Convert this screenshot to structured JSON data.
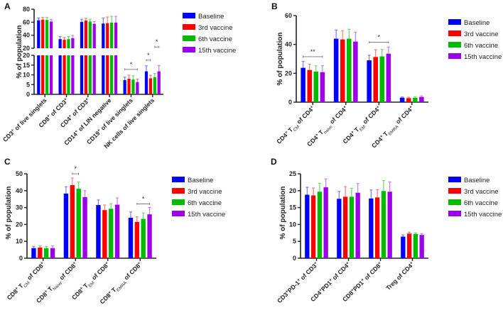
{
  "chart_data": [
    {
      "panel": "A",
      "type": "bar",
      "ylabel": "% of population",
      "y_axis_break": {
        "lower": [
          0,
          20
        ],
        "upper": [
          20,
          80
        ]
      },
      "yticks_lower": [
        0,
        5,
        10,
        15,
        20
      ],
      "yticks_upper": [
        20,
        40,
        60,
        80
      ],
      "categories": [
        {
          "parts": [
            {
              "t": "CD3",
              "s": ""
            },
            {
              "t": "+",
              "s": "sup"
            },
            {
              "t": " of live singlets",
              "s": ""
            }
          ]
        },
        {
          "parts": [
            {
              "t": "CD8",
              "s": ""
            },
            {
              "t": "+",
              "s": "sup"
            },
            {
              "t": " of CD3",
              "s": ""
            },
            {
              "t": "+",
              "s": "sup"
            }
          ]
        },
        {
          "parts": [
            {
              "t": "CD4",
              "s": ""
            },
            {
              "t": "+",
              "s": "sup"
            },
            {
              "t": " of CD3",
              "s": ""
            },
            {
              "t": "+",
              "s": "sup"
            }
          ]
        },
        {
          "parts": [
            {
              "t": "CD14",
              "s": ""
            },
            {
              "t": "+",
              "s": "sup"
            },
            {
              "t": " of LIN negative",
              "s": ""
            }
          ]
        },
        {
          "parts": [
            {
              "t": "CD19",
              "s": ""
            },
            {
              "t": "+",
              "s": "sup"
            },
            {
              "t": " of live singlets",
              "s": ""
            }
          ]
        },
        {
          "parts": [
            {
              "t": "NK cells of live singlets",
              "s": ""
            }
          ]
        }
      ],
      "series": [
        {
          "name": "Baseline",
          "color": "#0000ff",
          "err_color": "#7a7aff",
          "values": [
            63,
            34,
            60.5,
            58,
            7.3,
            11.8
          ],
          "errors": [
            3.5,
            4,
            4,
            8.5,
            1.5,
            2.8
          ]
        },
        {
          "name": "3rd vaccine",
          "color": "#ff0000",
          "err_color": "#ff7a7a",
          "values": [
            64,
            33,
            62.5,
            58.5,
            8,
            8.2
          ],
          "errors": [
            3.5,
            3.5,
            3.5,
            9.5,
            1.8,
            1.6
          ]
        },
        {
          "name": "6th vaccine",
          "color": "#00bb00",
          "err_color": "#6ad96a",
          "values": [
            63.5,
            34,
            61,
            59.5,
            7.6,
            8.8
          ],
          "errors": [
            4,
            4,
            3.5,
            9.5,
            1.9,
            1.9
          ]
        },
        {
          "name": "15th vaccine",
          "color": "#9b00e8",
          "err_color": "#c77af5",
          "values": [
            61,
            35.5,
            57.5,
            59.5,
            6.3,
            11.8
          ],
          "errors": [
            3,
            4,
            3.5,
            9.5,
            1.5,
            3
          ]
        }
      ],
      "significance": [
        {
          "category": 4,
          "from": 0,
          "to": 3,
          "y": 12.8,
          "label": "*"
        },
        {
          "category": 5,
          "from": 0,
          "to": 1,
          "y": 17.5,
          "label": "*"
        },
        {
          "category": 5,
          "from": 2,
          "to": 3,
          "y": 22,
          "label": "*"
        }
      ],
      "legend": "right"
    },
    {
      "panel": "B",
      "type": "bar",
      "ylabel": "% of population",
      "ylim": [
        0,
        60
      ],
      "yticks": [
        0,
        20,
        40,
        60
      ],
      "categories": [
        {
          "parts": [
            {
              "t": "CD4",
              "s": ""
            },
            {
              "t": "+",
              "s": "sup"
            },
            {
              "t": " T",
              "s": ""
            },
            {
              "t": "CM",
              "s": "sub"
            },
            {
              "t": " of CD4",
              "s": ""
            },
            {
              "t": "+",
              "s": "sup"
            }
          ]
        },
        {
          "parts": [
            {
              "t": "CD4",
              "s": ""
            },
            {
              "t": "+",
              "s": "sup"
            },
            {
              "t": " T",
              "s": ""
            },
            {
              "t": "naive",
              "s": "sub"
            },
            {
              "t": " of CD4",
              "s": ""
            },
            {
              "t": "+",
              "s": "sup"
            }
          ]
        },
        {
          "parts": [
            {
              "t": "CD4",
              "s": ""
            },
            {
              "t": "+",
              "s": "sup"
            },
            {
              "t": " T",
              "s": ""
            },
            {
              "t": "EM",
              "s": "sub"
            },
            {
              "t": " of CD4",
              "s": ""
            },
            {
              "t": "+",
              "s": "sup"
            }
          ]
        },
        {
          "parts": [
            {
              "t": "CD4",
              "s": ""
            },
            {
              "t": "+",
              "s": "sup"
            },
            {
              "t": " T",
              "s": ""
            },
            {
              "t": "EMRA",
              "s": "sub"
            },
            {
              "t": " of CD4",
              "s": ""
            },
            {
              "t": "+",
              "s": "sup"
            }
          ]
        }
      ],
      "series": [
        {
          "name": "Baseline",
          "color": "#0000ff",
          "err_color": "#7a7aff",
          "values": [
            23.8,
            44,
            29,
            3.1
          ],
          "errors": [
            4.5,
            6,
            3.5,
            0.5
          ]
        },
        {
          "name": "3rd vaccine",
          "color": "#ff0000",
          "err_color": "#ff7a7a",
          "values": [
            22.3,
            43.5,
            31.3,
            2.8
          ],
          "errors": [
            4,
            6,
            5,
            0.6
          ]
        },
        {
          "name": "6th vaccine",
          "color": "#00bb00",
          "err_color": "#6ad96a",
          "values": [
            21.2,
            44,
            31.7,
            3
          ],
          "errors": [
            4,
            6.5,
            4.8,
            0.6
          ]
        },
        {
          "name": "15th vaccine",
          "color": "#9b00e8",
          "err_color": "#c77af5",
          "values": [
            20.8,
            42,
            33.6,
            3.6
          ],
          "errors": [
            4.5,
            6.5,
            4.6,
            0.7
          ]
        }
      ],
      "significance": [
        {
          "category": 0,
          "from": 0,
          "to": 3,
          "y": 31.5,
          "label": "**"
        },
        {
          "category": 2,
          "from": 0,
          "to": 3,
          "y": 41.5,
          "label": "*"
        }
      ],
      "legend": "right"
    },
    {
      "panel": "C",
      "type": "bar",
      "ylabel": "% of population",
      "ylim": [
        0,
        50
      ],
      "yticks": [
        0,
        10,
        20,
        30,
        40,
        50
      ],
      "categories": [
        {
          "parts": [
            {
              "t": "CD8",
              "s": ""
            },
            {
              "t": "+",
              "s": "sup"
            },
            {
              "t": " T",
              "s": ""
            },
            {
              "t": "CM",
              "s": "sub"
            },
            {
              "t": " of CD8",
              "s": ""
            },
            {
              "t": "+",
              "s": "sup"
            }
          ]
        },
        {
          "parts": [
            {
              "t": "CD8",
              "s": ""
            },
            {
              "t": "+",
              "s": "sup"
            },
            {
              "t": " T",
              "s": ""
            },
            {
              "t": "Naive",
              "s": "sub"
            },
            {
              "t": " of CD8",
              "s": ""
            },
            {
              "t": "+",
              "s": "sup"
            }
          ]
        },
        {
          "parts": [
            {
              "t": "CD8",
              "s": ""
            },
            {
              "t": "+",
              "s": "sup"
            },
            {
              "t": " T",
              "s": ""
            },
            {
              "t": "EM",
              "s": "sub"
            },
            {
              "t": " of CD8",
              "s": ""
            },
            {
              "t": "+",
              "s": "sup"
            }
          ]
        },
        {
          "parts": [
            {
              "t": "CD8",
              "s": ""
            },
            {
              "t": "+",
              "s": "sup"
            },
            {
              "t": " T",
              "s": ""
            },
            {
              "t": "EMRA",
              "s": "sub"
            },
            {
              "t": " of CD8",
              "s": ""
            },
            {
              "t": "+",
              "s": "sup"
            }
          ]
        }
      ],
      "series": [
        {
          "name": "Baseline",
          "color": "#0000ff",
          "err_color": "#7a7aff",
          "values": [
            6,
            38.3,
            31.5,
            24
          ],
          "errors": [
            1,
            4,
            3,
            3.4
          ]
        },
        {
          "name": "3rd vaccine",
          "color": "#ff0000",
          "err_color": "#ff7a7a",
          "values": [
            6.3,
            43.3,
            28.5,
            21.5
          ],
          "errors": [
            1,
            4.2,
            3,
            3
          ]
        },
        {
          "name": "6th vaccine",
          "color": "#00bb00",
          "err_color": "#6ad96a",
          "values": [
            6,
            41.2,
            29.3,
            23.3
          ],
          "errors": [
            1,
            4,
            3,
            3.5
          ]
        },
        {
          "name": "15th vaccine",
          "color": "#9b00e8",
          "err_color": "#c77af5",
          "values": [
            6,
            36.2,
            31.7,
            26
          ],
          "errors": [
            1.3,
            3.8,
            4,
            4
          ]
        }
      ],
      "significance": [
        {
          "category": 1,
          "from": 1,
          "to": 2,
          "y": 50.3,
          "label": "*"
        },
        {
          "category": 3,
          "from": 1,
          "to": 3,
          "y": 32.2,
          "label": "*"
        }
      ],
      "legend": "right"
    },
    {
      "panel": "D",
      "type": "bar",
      "ylabel": "% of population",
      "ylim": [
        0,
        25
      ],
      "yticks": [
        0,
        5,
        10,
        15,
        20,
        25
      ],
      "categories": [
        {
          "parts": [
            {
              "t": "CD3",
              "s": ""
            },
            {
              "t": "+",
              "s": "sup"
            },
            {
              "t": "PD-1",
              "s": ""
            },
            {
              "t": "+",
              "s": "sup"
            },
            {
              "t": " of CD3",
              "s": ""
            },
            {
              "t": "+",
              "s": "sup"
            }
          ]
        },
        {
          "parts": [
            {
              "t": "CD4",
              "s": ""
            },
            {
              "t": "+",
              "s": "sup"
            },
            {
              "t": "PD1",
              "s": ""
            },
            {
              "t": "+",
              "s": "sup"
            },
            {
              "t": " of CD4",
              "s": ""
            },
            {
              "t": "+",
              "s": "sup"
            }
          ]
        },
        {
          "parts": [
            {
              "t": "CD8",
              "s": ""
            },
            {
              "t": "+",
              "s": "sup"
            },
            {
              "t": "PD1",
              "s": ""
            },
            {
              "t": "+",
              "s": "sup"
            },
            {
              "t": " of CD8",
              "s": ""
            },
            {
              "t": "+",
              "s": "sup"
            }
          ]
        },
        {
          "parts": [
            {
              "t": "Treg of CD4",
              "s": ""
            },
            {
              "t": "+",
              "s": "sup"
            }
          ]
        }
      ],
      "series": [
        {
          "name": "Baseline",
          "color": "#0000ff",
          "err_color": "#7a7aff",
          "values": [
            18.8,
            17.6,
            17.7,
            6.4
          ],
          "errors": [
            2.2,
            2.2,
            2.5,
            0.5
          ]
        },
        {
          "name": "3rd vaccine",
          "color": "#ff0000",
          "err_color": "#ff7a7a",
          "values": [
            18.6,
            18.2,
            18,
            7.3
          ],
          "errors": [
            2.2,
            3,
            2.3,
            0.4
          ]
        },
        {
          "name": "6th vaccine",
          "color": "#00bb00",
          "err_color": "#6ad96a",
          "values": [
            19.7,
            18.2,
            19.9,
            7.2
          ],
          "errors": [
            2.5,
            2.5,
            3.1,
            0.3
          ]
        },
        {
          "name": "15th vaccine",
          "color": "#9b00e8",
          "err_color": "#c77af5",
          "values": [
            21,
            19.4,
            19.7,
            6.9
          ],
          "errors": [
            2.5,
            2.7,
            2.9,
            0.4
          ]
        }
      ],
      "significance": [],
      "legend": "right"
    }
  ]
}
